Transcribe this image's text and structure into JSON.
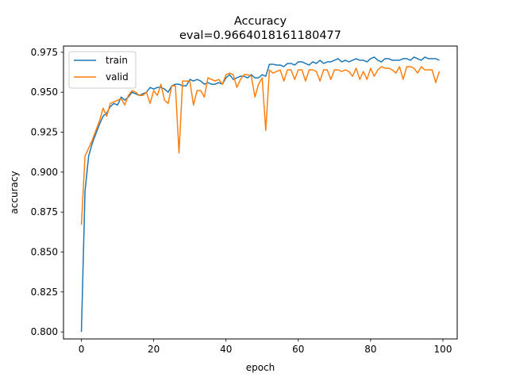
{
  "chart_data": {
    "type": "line",
    "title": "Accuracy",
    "subtitle": "eval=0.9664018161180477",
    "xlabel": "epoch",
    "ylabel": "accuracy",
    "xlim": [
      -4.95,
      103.95
    ],
    "ylim": [
      0.7956,
      0.9789
    ],
    "xticks": [
      0,
      20,
      40,
      60,
      80,
      100
    ],
    "xtick_labels": [
      "0",
      "20",
      "40",
      "60",
      "80",
      "100"
    ],
    "yticks": [
      0.8,
      0.825,
      0.85,
      0.875,
      0.9,
      0.925,
      0.95,
      0.975
    ],
    "ytick_labels": [
      "0.800",
      "0.825",
      "0.850",
      "0.875",
      "0.900",
      "0.925",
      "0.950",
      "0.975"
    ],
    "grid": false,
    "legend_position": "top-left",
    "x": [
      0,
      1,
      2,
      3,
      4,
      5,
      6,
      7,
      8,
      9,
      10,
      11,
      12,
      13,
      14,
      15,
      16,
      17,
      18,
      19,
      20,
      21,
      22,
      23,
      24,
      25,
      26,
      27,
      28,
      29,
      30,
      31,
      32,
      33,
      34,
      35,
      36,
      37,
      38,
      39,
      40,
      41,
      42,
      43,
      44,
      45,
      46,
      47,
      48,
      49,
      50,
      51,
      52,
      53,
      54,
      55,
      56,
      57,
      58,
      59,
      60,
      61,
      62,
      63,
      64,
      65,
      66,
      67,
      68,
      69,
      70,
      71,
      72,
      73,
      74,
      75,
      76,
      77,
      78,
      79,
      80,
      81,
      82,
      83,
      84,
      85,
      86,
      87,
      88,
      89,
      90,
      91,
      92,
      93,
      94,
      95,
      96,
      97,
      98,
      99
    ],
    "series": [
      {
        "name": "train",
        "color": "#1f77b4",
        "values": [
          0.8,
          0.888,
          0.91,
          0.918,
          0.924,
          0.93,
          0.935,
          0.937,
          0.941,
          0.943,
          0.942,
          0.947,
          0.945,
          0.947,
          0.95,
          0.949,
          0.948,
          0.949,
          0.95,
          0.953,
          0.952,
          0.953,
          0.953,
          0.952,
          0.95,
          0.954,
          0.955,
          0.955,
          0.954,
          0.954,
          0.958,
          0.957,
          0.958,
          0.957,
          0.955,
          0.956,
          0.955,
          0.955,
          0.956,
          0.955,
          0.959,
          0.961,
          0.958,
          0.959,
          0.96,
          0.96,
          0.959,
          0.961,
          0.959,
          0.959,
          0.961,
          0.96,
          0.9675,
          0.9675,
          0.967,
          0.967,
          0.966,
          0.968,
          0.968,
          0.967,
          0.969,
          0.969,
          0.968,
          0.967,
          0.969,
          0.968,
          0.97,
          0.968,
          0.969,
          0.969,
          0.97,
          0.971,
          0.969,
          0.97,
          0.969,
          0.97,
          0.971,
          0.97,
          0.97,
          0.969,
          0.971,
          0.972,
          0.97,
          0.969,
          0.971,
          0.971,
          0.97,
          0.97,
          0.97,
          0.971,
          0.971,
          0.97,
          0.972,
          0.971,
          0.97,
          0.972,
          0.971,
          0.971,
          0.971,
          0.97
        ]
      },
      {
        "name": "valid",
        "color": "#ff7f0e",
        "values": [
          0.867,
          0.91,
          0.915,
          0.92,
          0.926,
          0.932,
          0.94,
          0.935,
          0.943,
          0.944,
          0.945,
          0.946,
          0.942,
          0.948,
          0.951,
          0.95,
          0.948,
          0.948,
          0.95,
          0.943,
          0.951,
          0.948,
          0.955,
          0.945,
          0.943,
          0.954,
          0.954,
          0.912,
          0.957,
          0.957,
          0.957,
          0.942,
          0.951,
          0.951,
          0.947,
          0.959,
          0.958,
          0.957,
          0.958,
          0.955,
          0.961,
          0.962,
          0.961,
          0.953,
          0.958,
          0.961,
          0.961,
          0.96,
          0.947,
          0.955,
          0.959,
          0.926,
          0.964,
          0.962,
          0.963,
          0.964,
          0.957,
          0.964,
          0.964,
          0.958,
          0.964,
          0.964,
          0.957,
          0.964,
          0.964,
          0.963,
          0.957,
          0.964,
          0.964,
          0.958,
          0.964,
          0.964,
          0.963,
          0.964,
          0.963,
          0.96,
          0.965,
          0.958,
          0.963,
          0.958,
          0.965,
          0.96,
          0.964,
          0.966,
          0.965,
          0.965,
          0.964,
          0.962,
          0.966,
          0.958,
          0.966,
          0.966,
          0.965,
          0.962,
          0.966,
          0.964,
          0.964,
          0.964,
          0.956,
          0.963
        ]
      }
    ]
  }
}
